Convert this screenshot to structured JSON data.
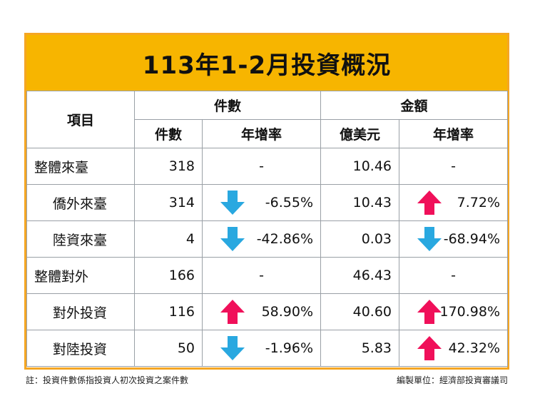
{
  "title": "113年1-2月投資概況",
  "header": {
    "item": "項目",
    "count_group": "件數",
    "amount_group": "金額",
    "count": "件數",
    "count_growth": "年增率",
    "amount_unit": "億美元",
    "amount_growth": "年增率"
  },
  "rows": [
    {
      "label": "整體來臺",
      "count": "318",
      "count_growth": "-",
      "count_dir": "none",
      "amount": "10.46",
      "amount_growth": "-",
      "amount_dir": "none"
    },
    {
      "label": "僑外來臺",
      "count": "314",
      "count_growth": "-6.55%",
      "count_dir": "down",
      "amount": "10.43",
      "amount_growth": "7.72%",
      "amount_dir": "up"
    },
    {
      "label": "陸資來臺",
      "count": "4",
      "count_growth": "-42.86%",
      "count_dir": "down",
      "amount": "0.03",
      "amount_growth": "-68.94%",
      "amount_dir": "down"
    },
    {
      "label": "整體對外",
      "count": "166",
      "count_growth": "-",
      "count_dir": "none",
      "amount": "46.43",
      "amount_growth": "-",
      "amount_dir": "none"
    },
    {
      "label": "對外投資",
      "count": "116",
      "count_growth": "58.90%",
      "count_dir": "up",
      "amount": "40.60",
      "amount_growth": "170.98%",
      "amount_dir": "up"
    },
    {
      "label": "對陸投資",
      "count": "50",
      "count_growth": "-1.96%",
      "count_dir": "down",
      "amount": "5.83",
      "amount_growth": "42.32%",
      "amount_dir": "up"
    }
  ],
  "footer": {
    "note": "註：投資件數係指投資人初次投資之案件數",
    "source": "編製單位：經濟部投資審議司"
  },
  "colors": {
    "title_bg": "#f7b500",
    "frame": "#f5a623",
    "up_arrow": "#f0105a",
    "down_arrow": "#29a8e0"
  }
}
